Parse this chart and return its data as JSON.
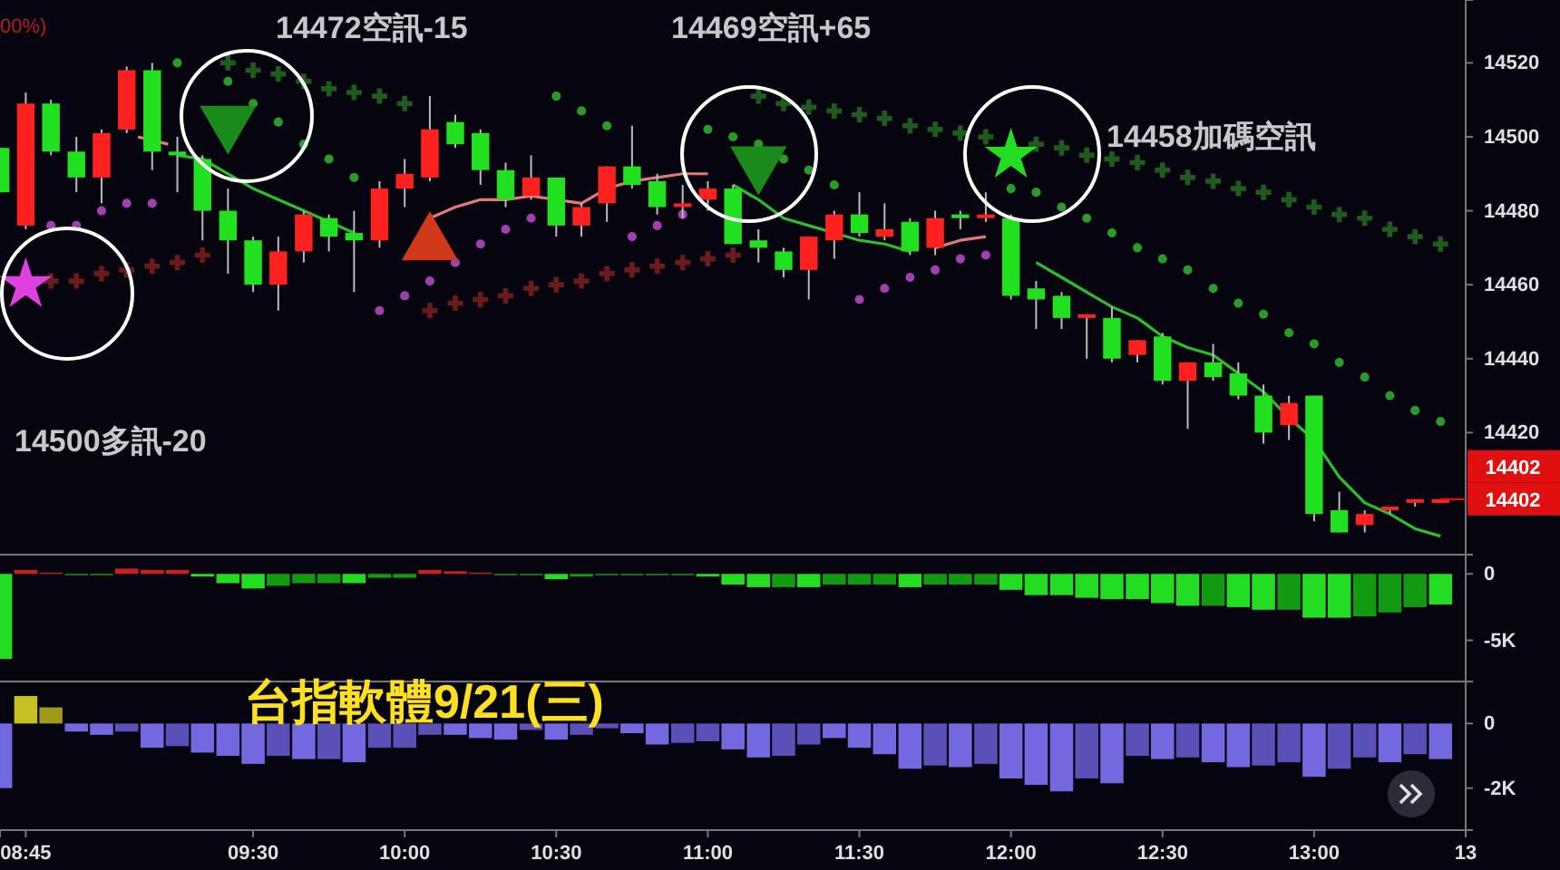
{
  "chart_data": [
    {
      "type": "candlestick",
      "xlim": [
        8.665,
        13.5
      ],
      "ylim": [
        14387,
        14537
      ],
      "yticks": [
        14420,
        14440,
        14460,
        14480,
        14500,
        14520
      ],
      "tick_labels": "y",
      "x": [
        8.667,
        8.75,
        8.833,
        8.917,
        9,
        9.083,
        9.167,
        9.25,
        9.333,
        9.417,
        9.5,
        9.583,
        9.667,
        9.75,
        9.833,
        9.917,
        10,
        10.083,
        10.167,
        10.25,
        10.333,
        10.417,
        10.5,
        10.583,
        10.667,
        10.75,
        10.833,
        10.917,
        11,
        11.083,
        11.167,
        11.25,
        11.333,
        11.417,
        11.5,
        11.583,
        11.667,
        11.75,
        11.833,
        11.917,
        12,
        12.083,
        12.167,
        12.25,
        12.333,
        12.417,
        12.5,
        12.583,
        12.667,
        12.75,
        12.833,
        12.917,
        13,
        13.083,
        13.167,
        13.25,
        13.333,
        13.417
      ],
      "ohlc": [
        [
          14497,
          14497,
          14485,
          14485
        ],
        [
          14476,
          14512,
          14475,
          14509
        ],
        [
          14509,
          14510,
          14495,
          14496
        ],
        [
          14496,
          14500,
          14485,
          14489
        ],
        [
          14489,
          14502,
          14482,
          14501
        ],
        [
          14502,
          14519,
          14501,
          14518
        ],
        [
          14518,
          14520,
          14491,
          14496
        ],
        [
          14496,
          14500,
          14485,
          14495
        ],
        [
          14494,
          14495,
          14472,
          14480
        ],
        [
          14480,
          14486,
          14463,
          14472
        ],
        [
          14472,
          14473,
          14458,
          14460
        ],
        [
          14460,
          14473,
          14453,
          14469
        ],
        [
          14469,
          14480,
          14466,
          14479
        ],
        [
          14478,
          14479,
          14469,
          14473
        ],
        [
          14474,
          14480,
          14458,
          14472
        ],
        [
          14472,
          14488,
          14470,
          14486
        ],
        [
          14486,
          14494,
          14481,
          14490
        ],
        [
          14489,
          14511,
          14488,
          14502
        ],
        [
          14504,
          14506,
          14497,
          14498
        ],
        [
          14501,
          14502,
          14487,
          14491
        ],
        [
          14491,
          14493,
          14481,
          14483
        ],
        [
          14484,
          14495,
          14483,
          14489
        ],
        [
          14489,
          14489,
          14473,
          14476
        ],
        [
          14476,
          14482,
          14473,
          14481
        ],
        [
          14482,
          14492,
          14477,
          14492
        ],
        [
          14492,
          14503,
          14486,
          14487
        ],
        [
          14488,
          14490,
          14479,
          14481
        ],
        [
          14481,
          14487,
          14478,
          14482
        ],
        [
          14483,
          14488,
          14480,
          14486
        ],
        [
          14486,
          14487,
          14471,
          14471
        ],
        [
          14472,
          14475,
          14466,
          14470
        ],
        [
          14469,
          14470,
          14462,
          14464
        ],
        [
          14464,
          14473,
          14456,
          14473
        ],
        [
          14472,
          14480,
          14467,
          14479
        ],
        [
          14479,
          14485,
          14473,
          14474
        ],
        [
          14473,
          14482,
          14472,
          14475
        ],
        [
          14477,
          14478,
          14468,
          14469
        ],
        [
          14470,
          14480,
          14468,
          14478
        ],
        [
          14479,
          14480,
          14475,
          14478
        ],
        [
          14478,
          14485,
          14477,
          14479
        ],
        [
          14478,
          14479,
          14456,
          14457
        ],
        [
          14459,
          14461,
          14448,
          14456
        ],
        [
          14457,
          14458,
          14448,
          14451
        ],
        [
          14451,
          14452,
          14440,
          14452
        ],
        [
          14451,
          14454,
          14439,
          14440
        ],
        [
          14441,
          14445,
          14439,
          14445
        ],
        [
          14446,
          14447,
          14433,
          14434
        ],
        [
          14434,
          14439,
          14421,
          14439
        ],
        [
          14439,
          14444,
          14434,
          14435
        ],
        [
          14436,
          14439,
          14429,
          14430
        ],
        [
          14430,
          14433,
          14417,
          14420
        ],
        [
          14422,
          14430,
          14418,
          14428
        ],
        [
          14430,
          14430,
          14396,
          14398
        ],
        [
          14399,
          14404,
          14393,
          14393
        ],
        [
          14395,
          14399,
          14393,
          14398
        ],
        [
          14399,
          14400,
          14398,
          14400
        ],
        [
          14401,
          14402,
          14400,
          14402
        ],
        [
          14401,
          14402,
          14401,
          14402
        ]
      ],
      "series": [
        {
          "type": "scatter",
          "marker": "circle",
          "color": "#2a9a2a",
          "values": [
            null,
            null,
            null,
            null,
            null,
            null,
            null,
            14520,
            null,
            14515,
            14509,
            14504,
            14498,
            14494,
            14489,
            null,
            null,
            null,
            null,
            null,
            null,
            null,
            14511,
            14507,
            14503,
            null,
            null,
            null,
            14502,
            14500,
            14498,
            14494,
            14491,
            14487,
            null,
            null,
            null,
            null,
            null,
            null,
            14486,
            14485,
            14481,
            14478,
            14474,
            14470,
            14467,
            14464,
            14459,
            14455,
            14452,
            14447,
            14444,
            14439,
            14435,
            14430,
            14426,
            14423
          ]
        },
        {
          "type": "scatter",
          "marker": "circle",
          "color": "#a040b0",
          "values": [
            null,
            null,
            14476,
            14476,
            14480,
            14482,
            14482,
            null,
            null,
            null,
            null,
            null,
            null,
            null,
            null,
            14453,
            14457,
            14461,
            14466,
            14471,
            14475,
            14478,
            null,
            null,
            null,
            14473,
            14476,
            14479,
            null,
            null,
            null,
            null,
            null,
            null,
            14456,
            14459,
            14462,
            14464,
            14467,
            14468,
            null,
            null,
            null,
            null,
            null,
            null,
            null,
            null,
            null,
            null,
            null,
            null,
            null,
            null,
            null,
            null,
            null,
            null
          ]
        },
        {
          "type": "scatter",
          "marker": "cross",
          "color": "#1f5a1f",
          "values": [
            null,
            null,
            null,
            null,
            null,
            null,
            null,
            null,
            null,
            14520,
            14518,
            14517,
            14515,
            14513,
            14512,
            14511,
            14509,
            null,
            null,
            null,
            null,
            null,
            null,
            null,
            null,
            null,
            null,
            null,
            null,
            null,
            14511,
            14509,
            14508,
            14507,
            14506,
            14505,
            14503,
            14502,
            14501,
            14500,
            null,
            14498,
            14497,
            14495,
            14494,
            14493,
            14491,
            14489,
            14488,
            14486,
            14485,
            14483,
            14481,
            14479,
            14478,
            14475,
            14473,
            14471
          ]
        },
        {
          "type": "scatter",
          "marker": "cross",
          "color": "#6a1c1c",
          "values": [
            null,
            null,
            14461,
            14461,
            14463,
            14464,
            14465,
            14466,
            14468,
            null,
            null,
            null,
            null,
            null,
            null,
            null,
            null,
            14453,
            14455,
            14456,
            14457,
            14459,
            14460,
            14461,
            14463,
            14464,
            14465,
            14466,
            14467,
            14468,
            null,
            null,
            null,
            null,
            null,
            null,
            null,
            null,
            null,
            null,
            null,
            null,
            null,
            null,
            null,
            null,
            null,
            null,
            null,
            null,
            null,
            null,
            null,
            null,
            null,
            null,
            null,
            null
          ]
        },
        {
          "type": "line",
          "color": "#e07a7a",
          "x": [
            9.12,
            9.22
          ],
          "values": [
            14500,
            14498
          ]
        },
        {
          "type": "line",
          "color": "#e07a7a",
          "values": [
            null,
            null,
            null,
            null,
            null,
            null,
            null,
            null,
            null,
            null,
            null,
            null,
            null,
            null,
            null,
            null,
            null,
            14478,
            14481,
            14483,
            14483,
            14484,
            14483,
            14482,
            14486,
            14488,
            14489,
            14490,
            14490,
            null,
            null,
            null,
            null,
            null,
            null,
            null,
            null,
            14470,
            14472,
            14473,
            null,
            null,
            null,
            null,
            null,
            null,
            null,
            null,
            null,
            null,
            null,
            null,
            null,
            null,
            null,
            null,
            null,
            null
          ]
        },
        {
          "type": "line",
          "color": "#2cbf2c",
          "values": [
            null,
            null,
            null,
            null,
            null,
            null,
            null,
            14495,
            14494,
            14490,
            14486,
            14483,
            14480,
            14477,
            14474,
            null,
            null,
            null,
            null,
            null,
            null,
            null,
            null,
            null,
            null,
            null,
            null,
            null,
            null,
            14487,
            14483,
            14478,
            14476,
            14474,
            14472,
            14471,
            14469,
            null,
            null,
            null,
            null,
            14466,
            14462,
            14458,
            14454,
            14451,
            14446,
            14443,
            14441,
            14436,
            14431,
            14424,
            14418,
            14408,
            14401,
            14398,
            14394,
            14392
          ]
        },
        {
          "type": "scatter",
          "marker": "star",
          "x": [
            8.75,
            12
          ],
          "values": [
            14460,
            14495
          ],
          "colors": [
            "#e040e0",
            "#22dd22"
          ]
        },
        {
          "type": "scatter",
          "marker": "triangle-down",
          "x": [
            9.417,
            11.167
          ],
          "values": [
            14504,
            14493
          ],
          "color": "#1a8a1a"
        },
        {
          "type": "scatter",
          "marker": "triangle",
          "x": [
            10.083
          ],
          "values": [
            14471
          ],
          "color": "#d03a1a"
        }
      ],
      "annotations": [
        "00%)",
        "14472空訊-15",
        "14469空訊+65",
        "14458加碼空訊",
        "14500多訊-20",
        {
          "text": "14402",
          "x": 13.417,
          "y": 14402
        },
        {
          "text": "14402",
          "x": 13.417,
          "y": 14402
        }
      ]
    },
    {
      "type": "bar",
      "xlim": [
        8.665,
        13.5
      ],
      "ylim": [
        -8100,
        1450
      ],
      "yticks": [
        0,
        {
          "value": -5000,
          "label": "-5K"
        }
      ],
      "tick_labels": "y",
      "x": [
        8.667,
        8.75,
        8.833,
        8.917,
        9,
        9.083,
        9.167,
        9.25,
        9.333,
        9.417,
        9.5,
        9.583,
        9.667,
        9.75,
        9.833,
        9.917,
        10,
        10.083,
        10.167,
        10.25,
        10.333,
        10.417,
        10.5,
        10.583,
        10.667,
        10.75,
        10.833,
        10.917,
        11,
        11.083,
        11.167,
        11.25,
        11.333,
        11.417,
        11.5,
        11.583,
        11.667,
        11.75,
        11.833,
        11.917,
        12,
        12.083,
        12.167,
        12.25,
        12.333,
        12.417,
        12.5,
        12.583,
        12.667,
        12.75,
        12.833,
        12.917,
        13,
        13.083,
        13.167,
        13.25,
        13.333,
        13.417
      ],
      "values": [
        -6400,
        300,
        100,
        -100,
        -100,
        400,
        300,
        300,
        -200,
        -700,
        -1100,
        -900,
        -700,
        -700,
        -700,
        -300,
        -300,
        300,
        200,
        100,
        -100,
        -100,
        -400,
        -200,
        -100,
        -100,
        -100,
        -100,
        -200,
        -800,
        -1000,
        -1000,
        -1000,
        -800,
        -800,
        -800,
        -1000,
        -800,
        -800,
        -800,
        -1200,
        -1600,
        -1600,
        -1800,
        -1900,
        -1900,
        -2200,
        -2400,
        -2400,
        -2500,
        -2700,
        -2700,
        -3300,
        -3300,
        -3200,
        -2900,
        -2500,
        -2300
      ],
      "colors": [
        "#22dd22",
        "#cc2020",
        "#cc2020",
        "#129a12",
        "#129a12",
        "#cc2020",
        "#cc2020",
        "#cc2020",
        "#22dd22",
        "#22dd22",
        "#22dd22",
        "#129a12",
        "#129a12",
        "#129a12",
        "#22dd22",
        "#129a12",
        "#129a12",
        "#cc2020",
        "#cc2020",
        "#cc2020",
        "#129a12",
        "#129a12",
        "#22dd22",
        "#129a12",
        "#129a12",
        "#129a12",
        "#129a12",
        "#129a12",
        "#22dd22",
        "#22dd22",
        "#22dd22",
        "#129a12",
        "#22dd22",
        "#129a12",
        "#129a12",
        "#129a12",
        "#22dd22",
        "#129a12",
        "#129a12",
        "#129a12",
        "#22dd22",
        "#22dd22",
        "#22dd22",
        "#22dd22",
        "#22dd22",
        "#22dd22",
        "#22dd22",
        "#22dd22",
        "#129a12",
        "#22dd22",
        "#22dd22",
        "#129a12",
        "#22dd22",
        "#22dd22",
        "#129a12",
        "#129a12",
        "#129a12",
        "#22dd22"
      ]
    },
    {
      "type": "bar",
      "title": "台指軟體9/21(三)",
      "xlim": [
        8.665,
        13.5
      ],
      "ylim": [
        -3300,
        1300
      ],
      "yticks": [
        0,
        {
          "value": -2000,
          "label": "-2K"
        }
      ],
      "xticks": [
        {
          "value": 8.75,
          "label": "08:45"
        },
        {
          "value": 9.5,
          "label": "09:30"
        },
        {
          "value": 10,
          "label": "10:00"
        },
        {
          "value": 10.5,
          "label": "10:30"
        },
        {
          "value": 11,
          "label": "11:00"
        },
        {
          "value": 11.5,
          "label": "11:30"
        },
        {
          "value": 12,
          "label": "12:00"
        },
        {
          "value": 12.5,
          "label": "12:30"
        },
        {
          "value": 13,
          "label": "13:00"
        },
        {
          "value": 13.5,
          "label": "13"
        }
      ],
      "x": [
        8.667,
        8.75,
        8.833,
        8.917,
        9,
        9.083,
        9.167,
        9.25,
        9.333,
        9.417,
        9.5,
        9.583,
        9.667,
        9.75,
        9.833,
        9.917,
        10,
        10.083,
        10.167,
        10.25,
        10.333,
        10.417,
        10.5,
        10.583,
        10.667,
        10.75,
        10.833,
        10.917,
        11,
        11.083,
        11.167,
        11.25,
        11.333,
        11.417,
        11.5,
        11.583,
        11.667,
        11.75,
        11.833,
        11.917,
        12,
        12.083,
        12.167,
        12.25,
        12.333,
        12.417,
        12.5,
        12.583,
        12.667,
        12.75,
        12.833,
        12.917,
        13,
        13.083,
        13.167,
        13.25,
        13.333,
        13.417
      ],
      "values": [
        -2000,
        850,
        500,
        -250,
        -350,
        -250,
        -750,
        -700,
        -900,
        -1000,
        -1250,
        -1000,
        -1100,
        -1100,
        -1200,
        -750,
        -750,
        -350,
        -350,
        -450,
        -500,
        -200,
        -500,
        -350,
        -150,
        -300,
        -650,
        -600,
        -550,
        -800,
        -1050,
        -1000,
        -650,
        -450,
        -750,
        -950,
        -1400,
        -1300,
        -1350,
        -1250,
        -1700,
        -1900,
        -2100,
        -1700,
        -1850,
        -1000,
        -1100,
        -1050,
        -1200,
        -1350,
        -1300,
        -1200,
        -1650,
        -1400,
        -1050,
        -1200,
        -950,
        -1100
      ],
      "colors": [
        "#7468e0",
        "#c8c020",
        "#a09a18",
        "#7468e0",
        "#7468e0",
        "#5a50b8",
        "#7468e0",
        "#5a50b8",
        "#7468e0",
        "#7468e0",
        "#7468e0",
        "#5a50b8",
        "#7468e0",
        "#5a50b8",
        "#7468e0",
        "#5a50b8",
        "#5a50b8",
        "#5a50b8",
        "#7468e0",
        "#7468e0",
        "#7468e0",
        "#5a50b8",
        "#7468e0",
        "#5a50b8",
        "#5a50b8",
        "#7468e0",
        "#7468e0",
        "#5a50b8",
        "#5a50b8",
        "#7468e0",
        "#7468e0",
        "#5a50b8",
        "#5a50b8",
        "#7468e0",
        "#7468e0",
        "#7468e0",
        "#7468e0",
        "#5a50b8",
        "#7468e0",
        "#5a50b8",
        "#7468e0",
        "#7468e0",
        "#7468e0",
        "#5a50b8",
        "#7468e0",
        "#5a50b8",
        "#7468e0",
        "#5a50b8",
        "#7468e0",
        "#7468e0",
        "#5a50b8",
        "#5a50b8",
        "#7468e0",
        "#5a50b8",
        "#5a50b8",
        "#7468e0",
        "#5a50b8",
        "#7468e0"
      ]
    }
  ]
}
